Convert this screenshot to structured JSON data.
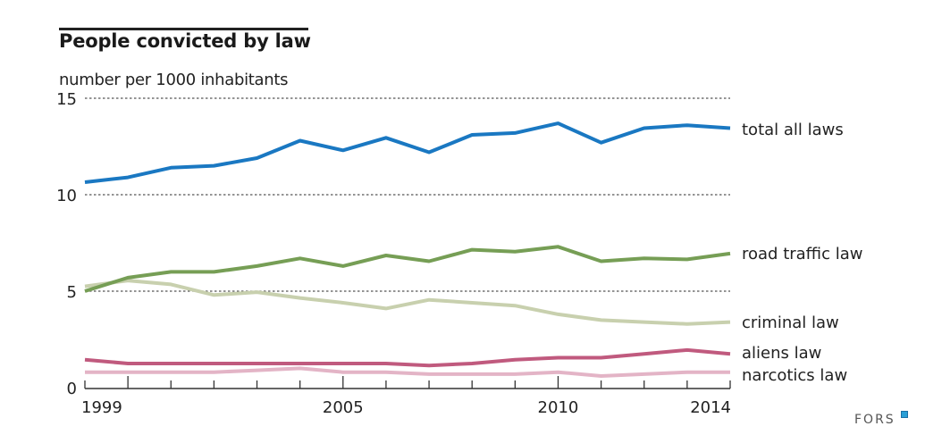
{
  "header": {
    "title": "People convicted by law",
    "subtitle": "number per 1000 inhabitants"
  },
  "brand": {
    "name": "FORS",
    "accent": "#2a9fd6"
  },
  "chart_data": {
    "type": "line",
    "title": "People convicted by law",
    "ylabel": "number per 1000 inhabitants",
    "xlabel": "",
    "x": [
      1999,
      2000,
      2001,
      2002,
      2003,
      2004,
      2005,
      2006,
      2007,
      2008,
      2009,
      2010,
      2011,
      2012,
      2013,
      2014
    ],
    "xticks_labeled": [
      1999,
      2005,
      2010,
      2014
    ],
    "yticks": [
      0,
      5,
      10,
      15
    ],
    "ylim": [
      0,
      15
    ],
    "xlim": [
      1999,
      2014
    ],
    "grid": "horizontal dotted",
    "legend": "inline-right",
    "series": [
      {
        "name": "total all laws",
        "color": "#1a78c2",
        "values": [
          10.65,
          10.9,
          11.4,
          11.5,
          11.9,
          12.8,
          12.3,
          12.95,
          12.2,
          13.1,
          13.2,
          13.7,
          12.7,
          13.45,
          13.6,
          13.45
        ]
      },
      {
        "name": "road traffic law",
        "color": "#769e55",
        "values": [
          5.0,
          5.7,
          6.0,
          6.0,
          6.3,
          6.7,
          6.3,
          6.85,
          6.55,
          7.15,
          7.05,
          7.3,
          6.55,
          6.7,
          6.65,
          6.95
        ]
      },
      {
        "name": "criminal law",
        "color": "#c8d0ae",
        "values": [
          5.25,
          5.55,
          5.35,
          4.8,
          4.95,
          4.65,
          4.4,
          4.1,
          4.55,
          4.4,
          4.25,
          3.8,
          3.5,
          3.4,
          3.3,
          3.4
        ]
      },
      {
        "name": "aliens law",
        "color": "#c05a7e",
        "values": [
          1.45,
          1.25,
          1.25,
          1.25,
          1.25,
          1.25,
          1.25,
          1.25,
          1.15,
          1.25,
          1.45,
          1.55,
          1.55,
          1.75,
          1.95,
          1.75
        ]
      },
      {
        "name": "narcotics law",
        "color": "#e3b4c6",
        "values": [
          0.8,
          0.8,
          0.8,
          0.8,
          0.9,
          1.0,
          0.8,
          0.8,
          0.7,
          0.7,
          0.7,
          0.8,
          0.6,
          0.7,
          0.8,
          0.8
        ]
      }
    ]
  }
}
